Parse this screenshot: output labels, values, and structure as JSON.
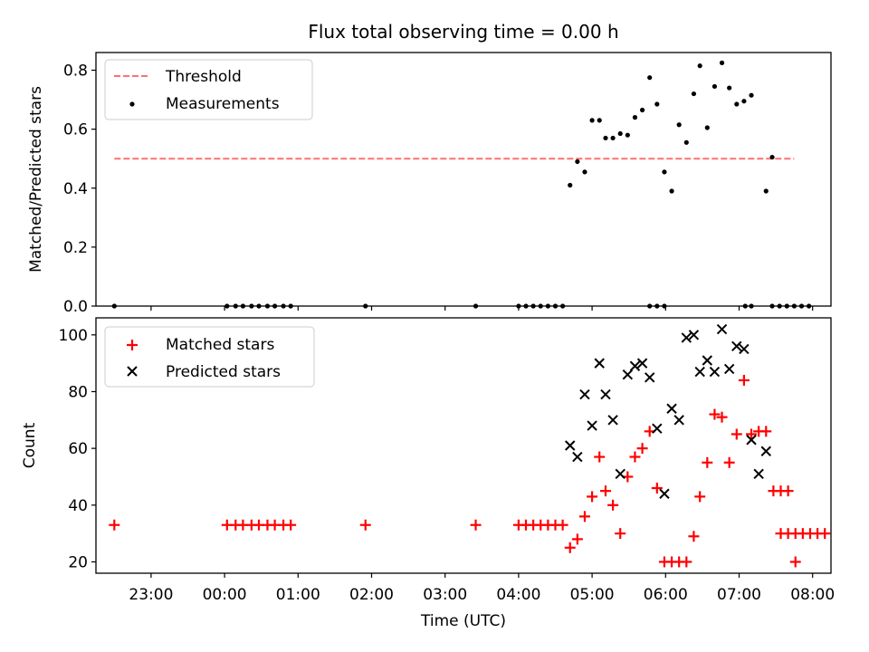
{
  "chart_data": [
    {
      "type": "scatter",
      "title": "Flux total observing time = 0.00 h",
      "xlabel": "",
      "ylabel": "Matched/Predicted stars",
      "xlim": [
        "22:15",
        "08:15"
      ],
      "ylim": [
        0,
        0.86
      ],
      "yticks": [
        0,
        0.2,
        0.4,
        0.6,
        0.8
      ],
      "ytick_labels": [
        "0.0",
        "0.2",
        "0.4",
        "0.6",
        "0.8"
      ],
      "xticks": [
        "23:00",
        "00:00",
        "01:00",
        "02:00",
        "03:00",
        "04:00",
        "05:00",
        "06:00",
        "07:00",
        "08:00"
      ],
      "grid": false,
      "legend_placement": "upper left",
      "threshold": {
        "name": "Threshold",
        "value": 0.5,
        "x_start": "22:30",
        "x_end": "07:45",
        "color": "#ff7070",
        "style": "dashed"
      },
      "series": [
        {
          "name": "Measurements",
          "color": "#000000",
          "points": [
            [
              "22:30",
              0
            ],
            [
              "00:02",
              0
            ],
            [
              "00:09",
              0
            ],
            [
              "00:15",
              0
            ],
            [
              "00:22",
              0
            ],
            [
              "00:28",
              0
            ],
            [
              "00:35",
              0
            ],
            [
              "00:41",
              0
            ],
            [
              "00:48",
              0
            ],
            [
              "00:54",
              0
            ],
            [
              "01:55",
              0
            ],
            [
              "03:25",
              0
            ],
            [
              "04:00",
              0
            ],
            [
              "04:06",
              0
            ],
            [
              "04:12",
              0
            ],
            [
              "04:18",
              0
            ],
            [
              "04:24",
              0
            ],
            [
              "04:30",
              0
            ],
            [
              "04:36",
              0
            ],
            [
              "04:42",
              0.41
            ],
            [
              "04:48",
              0.49
            ],
            [
              "04:54",
              0.455
            ],
            [
              "05:00",
              0.63
            ],
            [
              "05:06",
              0.63
            ],
            [
              "05:11",
              0.57
            ],
            [
              "05:17",
              0.57
            ],
            [
              "05:23",
              0.585
            ],
            [
              "05:29",
              0.58
            ],
            [
              "05:35",
              0.64
            ],
            [
              "05:41",
              0.665
            ],
            [
              "05:47",
              0.775
            ],
            [
              "05:53",
              0.685
            ],
            [
              "05:59",
              0.455
            ],
            [
              "05:47",
              0
            ],
            [
              "05:53",
              0
            ],
            [
              "05:59",
              0
            ],
            [
              "06:05",
              0.39
            ],
            [
              "06:11",
              0.615
            ],
            [
              "06:17",
              0.555
            ],
            [
              "06:23",
              0.72
            ],
            [
              "06:28",
              0.815
            ],
            [
              "06:34",
              0.605
            ],
            [
              "06:40",
              0.745
            ],
            [
              "06:46",
              0.825
            ],
            [
              "06:52",
              0.74
            ],
            [
              "06:58",
              0.685
            ],
            [
              "07:04",
              0.695
            ],
            [
              "07:10",
              0.715
            ],
            [
              "07:05",
              0
            ],
            [
              "07:10",
              0
            ],
            [
              "07:22",
              0.39
            ],
            [
              "07:27",
              0.505
            ],
            [
              "07:27",
              0
            ],
            [
              "07:33",
              0
            ],
            [
              "07:39",
              0
            ],
            [
              "07:45",
              0
            ],
            [
              "07:51",
              0
            ],
            [
              "07:57",
              0
            ]
          ]
        }
      ]
    },
    {
      "type": "scatter",
      "title": "",
      "xlabel": "Time (UTC)",
      "ylabel": "Count",
      "xlim": [
        "22:15",
        "08:15"
      ],
      "ylim": [
        16,
        106
      ],
      "yticks": [
        20,
        40,
        60,
        80,
        100
      ],
      "ytick_labels": [
        "20",
        "40",
        "60",
        "80",
        "100"
      ],
      "xticks": [
        "23:00",
        "00:00",
        "01:00",
        "02:00",
        "03:00",
        "04:00",
        "05:00",
        "06:00",
        "07:00",
        "08:00"
      ],
      "xtick_labels": [
        "23:00",
        "00:00",
        "01:00",
        "02:00",
        "03:00",
        "04:00",
        "05:00",
        "06:00",
        "07:00",
        "08:00"
      ],
      "grid": false,
      "legend_placement": "upper left",
      "series": [
        {
          "name": "Matched stars",
          "color": "#ff0000",
          "marker": "plus",
          "points": [
            [
              "22:30",
              33
            ],
            [
              "00:02",
              33
            ],
            [
              "00:09",
              33
            ],
            [
              "00:15",
              33
            ],
            [
              "00:22",
              33
            ],
            [
              "00:28",
              33
            ],
            [
              "00:35",
              33
            ],
            [
              "00:41",
              33
            ],
            [
              "00:48",
              33
            ],
            [
              "00:54",
              33
            ],
            [
              "01:55",
              33
            ],
            [
              "03:25",
              33
            ],
            [
              "04:00",
              33
            ],
            [
              "04:06",
              33
            ],
            [
              "04:12",
              33
            ],
            [
              "04:18",
              33
            ],
            [
              "04:24",
              33
            ],
            [
              "04:30",
              33
            ],
            [
              "04:36",
              33
            ],
            [
              "04:42",
              25
            ],
            [
              "04:48",
              28
            ],
            [
              "04:54",
              36
            ],
            [
              "05:00",
              43
            ],
            [
              "05:06",
              57
            ],
            [
              "05:11",
              45
            ],
            [
              "05:17",
              40
            ],
            [
              "05:23",
              30
            ],
            [
              "05:29",
              50
            ],
            [
              "05:35",
              57
            ],
            [
              "05:41",
              60
            ],
            [
              "05:47",
              66
            ],
            [
              "05:53",
              46
            ],
            [
              "05:59",
              20
            ],
            [
              "06:05",
              20
            ],
            [
              "06:11",
              20
            ],
            [
              "06:17",
              20
            ],
            [
              "06:23",
              29
            ],
            [
              "06:28",
              43
            ],
            [
              "06:34",
              55
            ],
            [
              "06:40",
              72
            ],
            [
              "06:46",
              71
            ],
            [
              "06:52",
              55
            ],
            [
              "06:58",
              65
            ],
            [
              "07:04",
              84
            ],
            [
              "07:10",
              65
            ],
            [
              "07:16",
              66
            ],
            [
              "07:22",
              66
            ],
            [
              "07:28",
              45
            ],
            [
              "07:34",
              45
            ],
            [
              "07:40",
              45
            ],
            [
              "07:46",
              20
            ],
            [
              "07:52",
              30
            ],
            [
              "07:58",
              30
            ],
            [
              "08:04",
              30
            ],
            [
              "08:10",
              30
            ],
            [
              "07:34",
              30
            ],
            [
              "07:40",
              30
            ],
            [
              "07:46",
              30
            ]
          ]
        },
        {
          "name": "Predicted stars",
          "color": "#000000",
          "marker": "x",
          "points": [
            [
              "04:42",
              61
            ],
            [
              "04:48",
              57
            ],
            [
              "04:54",
              79
            ],
            [
              "05:00",
              68
            ],
            [
              "05:06",
              90
            ],
            [
              "05:11",
              79
            ],
            [
              "05:17",
              70
            ],
            [
              "05:23",
              51
            ],
            [
              "05:29",
              86
            ],
            [
              "05:35",
              89
            ],
            [
              "05:41",
              90
            ],
            [
              "05:47",
              85
            ],
            [
              "05:53",
              67
            ],
            [
              "05:59",
              44
            ],
            [
              "06:05",
              74
            ],
            [
              "06:11",
              70
            ],
            [
              "06:17",
              99
            ],
            [
              "06:23",
              100
            ],
            [
              "06:28",
              87
            ],
            [
              "06:34",
              91
            ],
            [
              "06:40",
              87
            ],
            [
              "06:46",
              102
            ],
            [
              "06:52",
              88
            ],
            [
              "06:58",
              96
            ],
            [
              "07:04",
              95
            ],
            [
              "07:10",
              63
            ],
            [
              "07:16",
              51
            ],
            [
              "07:22",
              59
            ]
          ]
        }
      ]
    }
  ]
}
